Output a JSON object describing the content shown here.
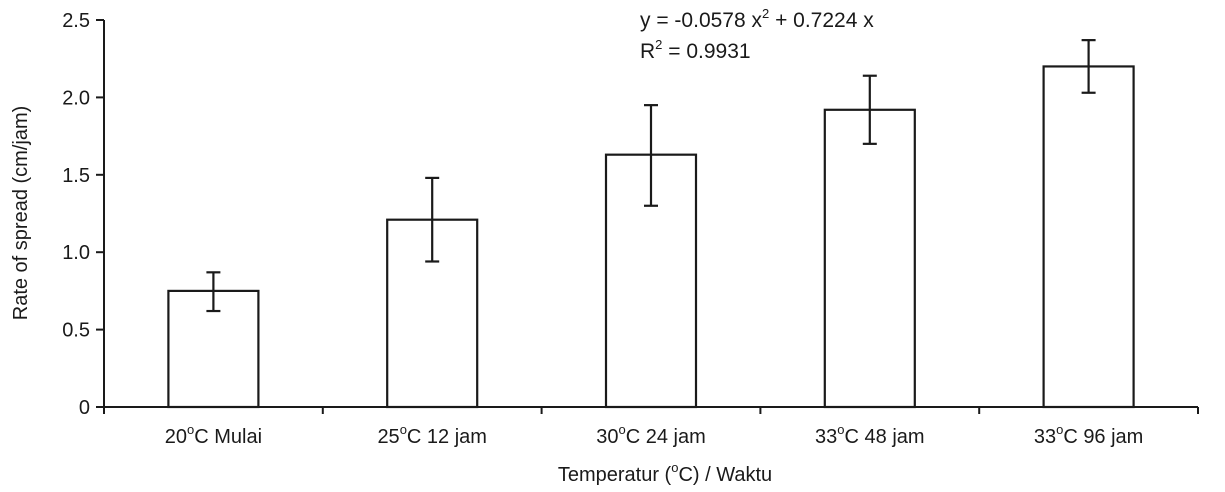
{
  "chart_data": {
    "type": "bar",
    "categories": [
      {
        "temp": "20",
        "unit": "C",
        "time": "Mulai"
      },
      {
        "temp": "25",
        "unit": "C",
        "time": "12 jam"
      },
      {
        "temp": "30",
        "unit": "C",
        "time": "24 jam"
      },
      {
        "temp": "33",
        "unit": "C",
        "time": "48 jam"
      },
      {
        "temp": "33",
        "unit": "C",
        "time": "96 jam"
      }
    ],
    "values": [
      0.75,
      1.21,
      1.63,
      1.92,
      2.2
    ],
    "error_lower": [
      0.62,
      0.94,
      1.3,
      1.7,
      2.03
    ],
    "error_upper": [
      0.87,
      1.48,
      1.95,
      2.14,
      2.37
    ],
    "ylim": [
      0,
      2.5
    ],
    "yticks": [
      "0",
      "0.5",
      "1.0",
      "1.5",
      "2.0",
      "2.5"
    ],
    "ylabel": "Rate of spread (cm/jam)",
    "xlabel": {
      "before": "Temperatur (",
      "sup": "o",
      "after": "C) / Waktu"
    },
    "annotation": {
      "equation": {
        "lhs": "y  =  -0.0578  x",
        "exp": "2",
        "rhs": "  +  0.7224  x"
      },
      "r2": {
        "base": "R",
        "exp": "2",
        "rest": "  =  0.9931"
      }
    },
    "grid": false,
    "legend": "none",
    "bar_color": "#ffffff",
    "line_color": "#1a1a1a"
  }
}
